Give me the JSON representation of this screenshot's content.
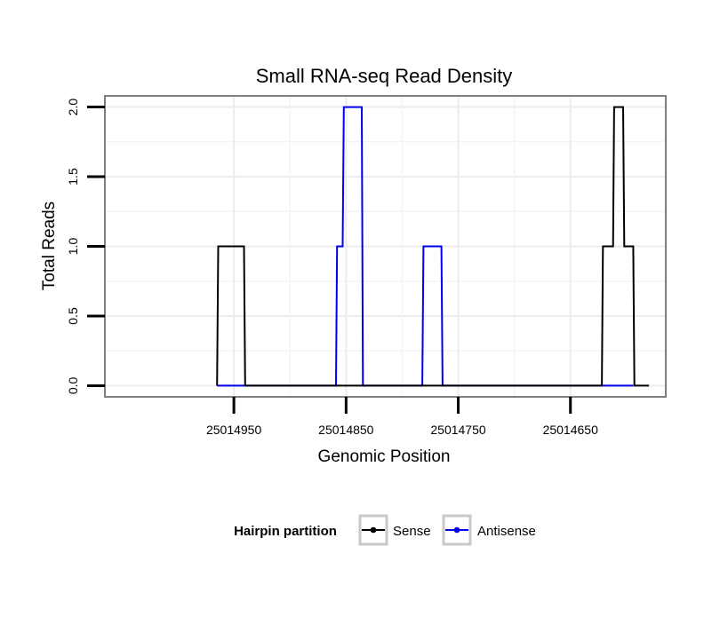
{
  "chart_data": {
    "type": "line",
    "title": "Small RNA-seq Read Density",
    "xlabel": "Genomic Position",
    "ylabel": "Total Reads",
    "x_reversed": true,
    "xlim": [
      25015065,
      25014565
    ],
    "ylim": [
      -0.08,
      2.08
    ],
    "x_ticks": [
      25014950,
      25014850,
      25014750,
      25014650
    ],
    "x_tick_labels": [
      "25014950",
      "25014850",
      "25014750",
      "25014650"
    ],
    "y_ticks": [
      0.0,
      0.5,
      1.0,
      1.5,
      2.0
    ],
    "y_tick_labels": [
      "0.0",
      "0.5",
      "1.0",
      "1.5",
      "2.0"
    ],
    "grid": true,
    "legend_position": "bottom",
    "legend": {
      "title": "Hairpin partition",
      "entries": [
        {
          "name": "Sense",
          "color": "#000000"
        },
        {
          "name": "Antisense",
          "color": "#0000ee"
        }
      ]
    },
    "series": [
      {
        "name": "Sense",
        "color": "#000000",
        "x": [
          25014965,
          25014964,
          25014941,
          25014940,
          25014930,
          25014900,
          25014850,
          25014800,
          25014750,
          25014700,
          25014650,
          25014622,
          25014621,
          25014612,
          25014611,
          25014603,
          25014602,
          25014594,
          25014593,
          25014580
        ],
        "y": [
          0,
          1,
          1,
          0,
          0,
          0,
          0,
          0,
          0,
          0,
          0,
          0,
          1,
          1,
          2,
          2,
          1,
          1,
          0,
          0
        ]
      },
      {
        "name": "Antisense",
        "color": "#0000ee",
        "x": [
          25014965,
          25014940,
          25014870,
          25014859,
          25014858,
          25014853,
          25014852,
          25014836,
          25014835,
          25014834,
          25014782,
          25014781,
          25014765,
          25014764,
          25014700,
          25014622,
          25014594
        ],
        "y": [
          0,
          0,
          0,
          0,
          1,
          1,
          2,
          2,
          0,
          0,
          0,
          1,
          1,
          0,
          0,
          0,
          0
        ]
      }
    ]
  }
}
